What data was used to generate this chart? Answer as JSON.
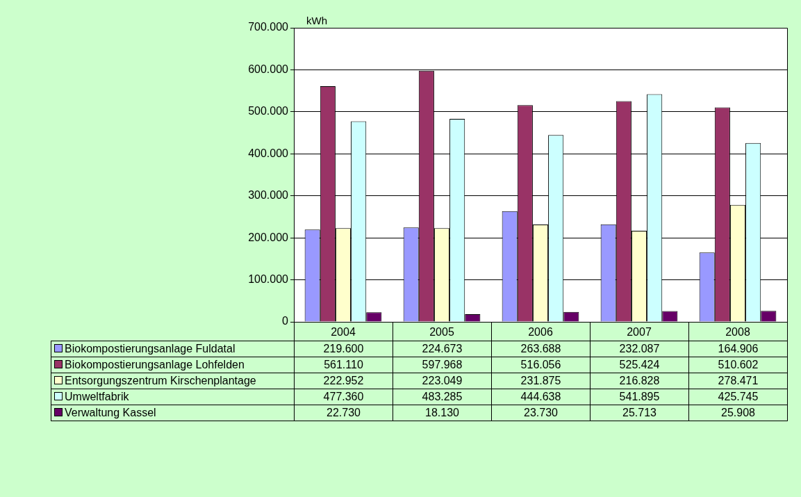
{
  "chart_data": {
    "type": "bar",
    "ylabel": "kWh",
    "categories": [
      "2004",
      "2005",
      "2006",
      "2007",
      "2008"
    ],
    "series": [
      {
        "name": "Biokompostierungsanlage Fuldatal",
        "color": "#9999ff",
        "values": [
          219600,
          224673,
          263688,
          232087,
          164906
        ],
        "value_labels": [
          "219.600",
          "224.673",
          "263.688",
          "232.087",
          "164.906"
        ]
      },
      {
        "name": "Biokompostierungsanlage Lohfelden",
        "color": "#993366",
        "values": [
          561110,
          597968,
          516056,
          525424,
          510602
        ],
        "value_labels": [
          "561.110",
          "597.968",
          "516.056",
          "525.424",
          "510.602"
        ]
      },
      {
        "name": "Entsorgungszentrum Kirschenplantage",
        "color": "#ffffcc",
        "values": [
          222952,
          223049,
          231875,
          216828,
          278471
        ],
        "value_labels": [
          "222.952",
          "223.049",
          "231.875",
          "216.828",
          "278.471"
        ]
      },
      {
        "name": "Umweltfabrik",
        "color": "#ccffff",
        "values": [
          477360,
          483285,
          444638,
          541895,
          425745
        ],
        "value_labels": [
          "477.360",
          "483.285",
          "444.638",
          "541.895",
          "425.745"
        ]
      },
      {
        "name": "Verwaltung Kassel",
        "color": "#660066",
        "values": [
          22730,
          18130,
          23730,
          25713,
          25908
        ],
        "value_labels": [
          "22.730",
          "18.130",
          "23.730",
          "25.713",
          "25.908"
        ]
      }
    ],
    "ylim": [
      0,
      700000
    ],
    "yticks": [
      0,
      {
        "value": 100000,
        "label": "100.000"
      },
      {
        "value": 200000,
        "label": "200.000"
      },
      {
        "value": 300000,
        "label": "300.000"
      },
      {
        "value": 400000,
        "label": "400.000"
      },
      {
        "value": 500000,
        "label": "500.000"
      },
      {
        "value": 600000,
        "label": "600.000"
      },
      {
        "value": 700000,
        "label": "700.000"
      }
    ],
    "grid": "y",
    "legend": "bottom left"
  }
}
